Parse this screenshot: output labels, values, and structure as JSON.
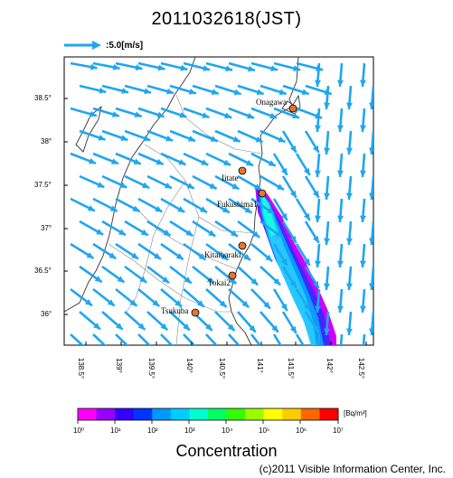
{
  "title": "2011032618(JST)",
  "wind_scale": {
    "label": ":5.0[m/s]",
    "color": "#1fa6f0"
  },
  "map": {
    "lat_ticks": [
      "38.5°",
      "38°",
      "37.5°",
      "37°",
      "36.5°",
      "36°"
    ],
    "lon_ticks": [
      "138.5°",
      "139°",
      "139.5°",
      "140°",
      "140.5°",
      "141°",
      "141.5°",
      "142°",
      "142.5°"
    ],
    "sites": [
      {
        "name": "Onagawa",
        "label": "Onagawa"
      },
      {
        "name": "Iitate",
        "label": "Iitate"
      },
      {
        "name": "Fukushima1",
        "label": "Fukushima1"
      },
      {
        "name": "Kitaibaraki",
        "label": "Kitaibaraki"
      },
      {
        "name": "Tokai2",
        "label": "Tokai2"
      },
      {
        "name": "Tsukuba",
        "label": "Tsukuba"
      }
    ],
    "site_color": "#e8742a"
  },
  "colorbar": {
    "unit": "[Bq/m³]",
    "ticks": [
      "10⁰",
      "10¹",
      "10²",
      "10³",
      "10⁴",
      "10⁵",
      "10⁶",
      "10⁷"
    ],
    "title": "Concentration",
    "colors": [
      "#ff00ff",
      "#9900ff",
      "#3300ff",
      "#0033ff",
      "#0099ff",
      "#00ccff",
      "#00ffcc",
      "#00ff66",
      "#33ff00",
      "#99ff00",
      "#ffff00",
      "#ffcc00",
      "#ff6600",
      "#ff0000"
    ]
  },
  "copyright": "(c)2011 Visible Information Center, Inc."
}
